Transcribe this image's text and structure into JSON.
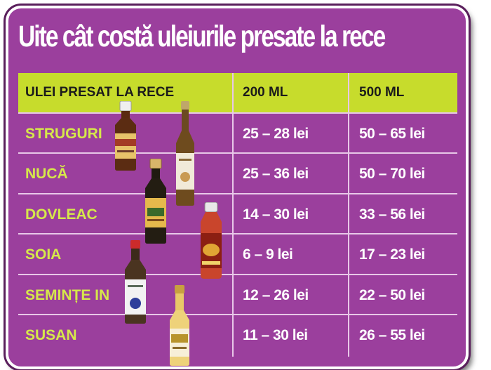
{
  "title": "Uite cât costă uleiurile presate la rece",
  "table": {
    "headers": [
      "ULEI PRESAT LA RECE",
      "200 ML",
      "500 ML"
    ],
    "rows": [
      {
        "name": "STRUGURI",
        "p200": "25 – 28 lei",
        "p500": "50 – 65 lei"
      },
      {
        "name": "NUCĂ",
        "p200": "25 – 36 lei",
        "p500": "50 – 70 lei"
      },
      {
        "name": "DOVLEAC",
        "p200": "14 – 30 lei",
        "p500": "33 – 56 lei"
      },
      {
        "name": "SOIA",
        "p200": "6 – 9 lei",
        "p500": "17 – 23 lei"
      },
      {
        "name": "SEMINȚE IN",
        "p200": "12 – 26 lei",
        "p500": "22 – 50 lei"
      },
      {
        "name": "SUSAN",
        "p200": "11 – 30 lei",
        "p500": "26 – 55 lei"
      }
    ]
  },
  "colors": {
    "background": "#9b3f9d",
    "header": "#c7dc2c",
    "name_text": "#d6e84a",
    "price_text": "#ffffff",
    "title_text": "#ffffff"
  }
}
